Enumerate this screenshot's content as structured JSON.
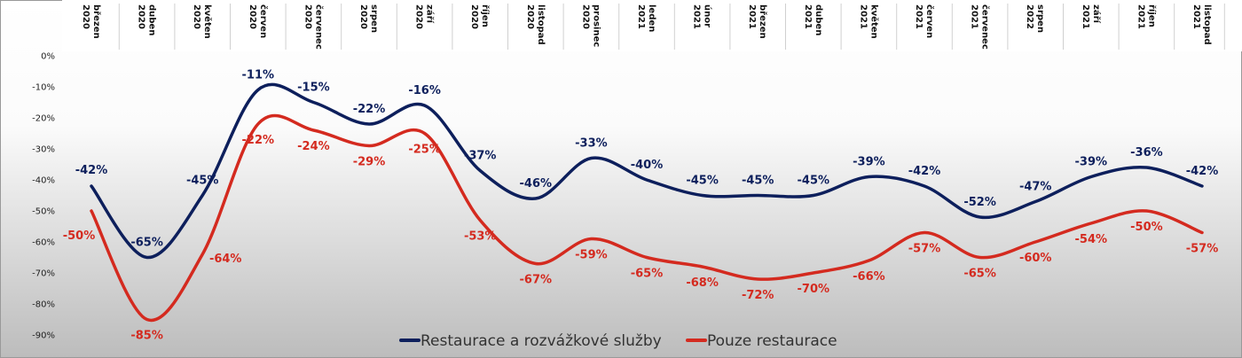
{
  "chart_data": {
    "type": "line",
    "categories": [
      "březen 2020",
      "duben 2020",
      "květen 2020",
      "červen 2020",
      "červenec 2020",
      "srpen 2020",
      "září 2020",
      "říjen 2020",
      "listopad 2020",
      "prosinec 2020",
      "leden 2021",
      "únor 2021",
      "březen 2021",
      "duben 2021",
      "květen 2021",
      "červen 2021",
      "červenec 2021",
      "srpen 2022",
      "září 2021",
      "říjen 2021",
      "listopad 2021"
    ],
    "category_lines": [
      [
        "březen",
        "2020"
      ],
      [
        "duben",
        "2020"
      ],
      [
        "květen",
        "2020"
      ],
      [
        "červen",
        "2020"
      ],
      [
        "červenec",
        "2020"
      ],
      [
        "srpen",
        "2020"
      ],
      [
        "září",
        "2020"
      ],
      [
        "říjen",
        "2020"
      ],
      [
        "listopad",
        "2020"
      ],
      [
        "prosinec",
        "2020"
      ],
      [
        "leden",
        "2021"
      ],
      [
        "únor",
        "2021"
      ],
      [
        "březen",
        "2021"
      ],
      [
        "duben",
        "2021"
      ],
      [
        "květen",
        "2021"
      ],
      [
        "červen",
        "2021"
      ],
      [
        "červenec",
        "2021"
      ],
      [
        "srpen",
        "2022"
      ],
      [
        "září",
        "2021"
      ],
      [
        "říjen",
        "2021"
      ],
      [
        "listopad",
        "2021"
      ]
    ],
    "series": [
      {
        "name": "Restaurace a rozvážkové služby",
        "color": "#0d1f5c",
        "values": [
          -42,
          -65,
          -45,
          -11,
          -15,
          -22,
          -16,
          -37,
          -46,
          -33,
          -40,
          -45,
          -45,
          -45,
          -39,
          -42,
          -52,
          -47,
          -39,
          -36,
          -42
        ]
      },
      {
        "name": "Pouze restaurace",
        "color": "#d42a1f",
        "values": [
          -50,
          -85,
          -64,
          -22,
          -24,
          -29,
          -25,
          -53,
          -67,
          -59,
          -65,
          -68,
          -72,
          -70,
          -66,
          -57,
          -65,
          -60,
          -54,
          -50,
          -57
        ]
      }
    ],
    "y_ticks": [
      "0%",
      "-10%",
      "-20%",
      "-30%",
      "-40%",
      "-50%",
      "-60%",
      "-70%",
      "-80%",
      "-90%"
    ],
    "ylim": [
      -90,
      0
    ],
    "x_axis_position": "top",
    "legend_position": "bottom-center",
    "grid": false
  }
}
